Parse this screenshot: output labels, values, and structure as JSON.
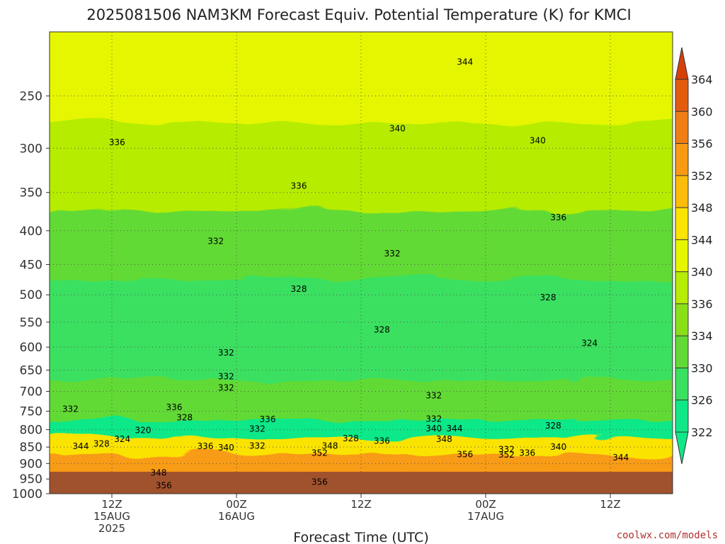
{
  "chart_data": {
    "type": "heatmap",
    "title": "2025081506 NAM3KM Forecast Equiv. Potential Temperature (K) for KMCI",
    "xlabel": "Forecast Time (UTC)",
    "ylabel": "",
    "credit": "coolwx.com/models",
    "y_ticks": [
      250,
      300,
      350,
      400,
      450,
      500,
      550,
      600,
      650,
      700,
      750,
      800,
      850,
      900,
      950,
      1000
    ],
    "y_tick_labels": [
      "250",
      "300",
      "350",
      "400",
      "450",
      "500",
      "550",
      "600",
      "650",
      "700",
      "750",
      "800",
      "850",
      "900",
      "950",
      "1000"
    ],
    "ylim": [
      1000,
      200
    ],
    "y_scale": "log",
    "grid": true,
    "x_hours": [
      12,
      24,
      36,
      48,
      60
    ],
    "x_ticks": [
      {
        "hour": 12,
        "l1": "12Z",
        "l2": "15AUG",
        "l3": "2025"
      },
      {
        "hour": 24,
        "l1": "00Z",
        "l2": "16AUG",
        "l3": ""
      },
      {
        "hour": 36,
        "l1": "12Z",
        "l2": "",
        "l3": ""
      },
      {
        "hour": 48,
        "l1": "00Z",
        "l2": "17AUG",
        "l3": ""
      },
      {
        "hour": 60,
        "l1": "12Z",
        "l2": "",
        "l3": ""
      }
    ],
    "xlim_hours": [
      6,
      66
    ],
    "colorbar": {
      "ticks": [
        "322",
        "326",
        "330",
        "334",
        "336",
        "340",
        "344",
        "348",
        "352",
        "356",
        "360",
        "364"
      ],
      "colors": [
        "#10e888",
        "#3ae060",
        "#62da35",
        "#8ae018",
        "#b6ec06",
        "#e6f600",
        "#fbe302",
        "#fdbc0a",
        "#f89b12",
        "#ef7e14",
        "#e35c0e",
        "#d64008"
      ]
    },
    "levels": [
      {
        "p": 200,
        "v": 342
      },
      {
        "p": 250,
        "v": 340
      },
      {
        "p": 300,
        "v": 338
      },
      {
        "p": 350,
        "v": 336
      },
      {
        "p": 400,
        "v": 333
      },
      {
        "p": 450,
        "v": 331
      },
      {
        "p": 500,
        "v": 329
      },
      {
        "p": 550,
        "v": 327
      },
      {
        "p": 600,
        "v": 327
      },
      {
        "p": 650,
        "v": 329
      },
      {
        "p": 700,
        "v": 330
      },
      {
        "p": 750,
        "v": 330
      },
      {
        "p": 800,
        "v": 325
      },
      {
        "p": 850,
        "v": 344
      },
      {
        "p": 900,
        "v": 352
      },
      {
        "p": 950,
        "v": 353
      }
    ],
    "contour_labels": [
      {
        "text": "344",
        "hour": 46,
        "p": 222
      },
      {
        "text": "340",
        "hour": 39.5,
        "p": 280
      },
      {
        "text": "340",
        "hour": 53,
        "p": 292
      },
      {
        "text": "336",
        "hour": 12.5,
        "p": 294
      },
      {
        "text": "336",
        "hour": 30,
        "p": 342
      },
      {
        "text": "336",
        "hour": 55,
        "p": 382
      },
      {
        "text": "332",
        "hour": 22,
        "p": 415
      },
      {
        "text": "332",
        "hour": 39,
        "p": 433
      },
      {
        "text": "328",
        "hour": 30,
        "p": 490
      },
      {
        "text": "328",
        "hour": 54,
        "p": 505
      },
      {
        "text": "328",
        "hour": 38,
        "p": 565
      },
      {
        "text": "324",
        "hour": 58,
        "p": 592
      },
      {
        "text": "332",
        "hour": 23,
        "p": 612
      },
      {
        "text": "332",
        "hour": 23,
        "p": 665
      },
      {
        "text": "332",
        "hour": 23,
        "p": 691
      },
      {
        "text": "332",
        "hour": 43,
        "p": 710
      },
      {
        "text": "332",
        "hour": 8,
        "p": 745
      },
      {
        "text": "336",
        "hour": 18,
        "p": 740
      },
      {
        "text": "328",
        "hour": 19,
        "p": 767
      },
      {
        "text": "336",
        "hour": 27,
        "p": 772
      },
      {
        "text": "332",
        "hour": 26,
        "p": 798
      },
      {
        "text": "332",
        "hour": 43,
        "p": 771
      },
      {
        "text": "340",
        "hour": 43,
        "p": 797
      },
      {
        "text": "344",
        "hour": 45,
        "p": 797
      },
      {
        "text": "328",
        "hour": 54.5,
        "p": 789
      },
      {
        "text": "320",
        "hour": 15,
        "p": 802
      },
      {
        "text": "324",
        "hour": 13,
        "p": 827
      },
      {
        "text": "328",
        "hour": 11,
        "p": 840
      },
      {
        "text": "344",
        "hour": 9,
        "p": 848
      },
      {
        "text": "328",
        "hour": 35,
        "p": 825
      },
      {
        "text": "336",
        "hour": 38,
        "p": 832
      },
      {
        "text": "348",
        "hour": 44,
        "p": 827
      },
      {
        "text": "336",
        "hour": 21,
        "p": 848
      },
      {
        "text": "340",
        "hour": 23,
        "p": 852
      },
      {
        "text": "332",
        "hour": 26,
        "p": 847
      },
      {
        "text": "348",
        "hour": 33,
        "p": 847
      },
      {
        "text": "352",
        "hour": 32,
        "p": 868
      },
      {
        "text": "356",
        "hour": 46,
        "p": 872
      },
      {
        "text": "352",
        "hour": 50,
        "p": 873
      },
      {
        "text": "332",
        "hour": 50,
        "p": 857
      },
      {
        "text": "336",
        "hour": 52,
        "p": 868
      },
      {
        "text": "340",
        "hour": 55,
        "p": 850
      },
      {
        "text": "344",
        "hour": 61,
        "p": 882
      },
      {
        "text": "348",
        "hour": 16.5,
        "p": 930
      },
      {
        "text": "356",
        "hour": 32,
        "p": 960
      },
      {
        "text": "356",
        "hour": 17,
        "p": 972
      }
    ]
  }
}
